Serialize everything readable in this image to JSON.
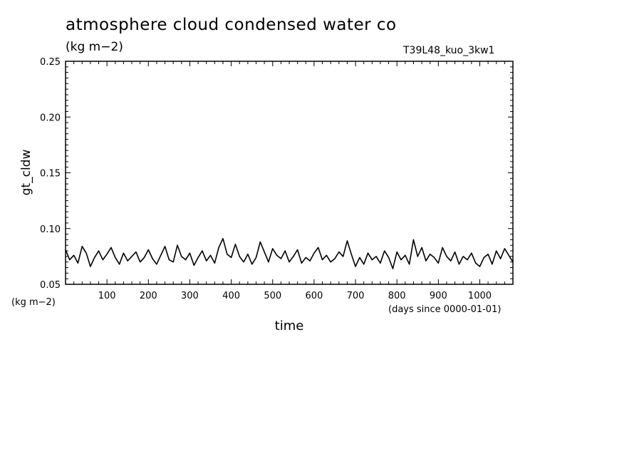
{
  "chart_data": {
    "type": "line",
    "title": "atmosphere cloud condensed water co",
    "units": "(kg m−2)",
    "run_label": "T39L48_kuo_3kw1",
    "xlabel": "time",
    "xunits": "(days since 0000-01-01)",
    "ylabel": "gt_cldw",
    "yunits": "(kg m−2)",
    "xlim": [
      0,
      1080
    ],
    "ylim": [
      0.05,
      0.25
    ],
    "xticks": [
      100,
      200,
      300,
      400,
      500,
      600,
      700,
      800,
      900,
      1000
    ],
    "xtick_labels": [
      "100",
      "200",
      "300",
      "400",
      "500",
      "600",
      "700",
      "800",
      "900",
      "1000"
    ],
    "yticks": [
      0.05,
      0.1,
      0.15,
      0.2,
      0.25
    ],
    "ytick_labels": [
      "0.05",
      "0.10",
      "0.15",
      "0.20",
      "0.25"
    ],
    "grid": false,
    "series": [
      {
        "x": [
          0,
          10,
          20,
          30,
          40,
          50,
          60,
          70,
          80,
          90,
          100,
          110,
          120,
          130,
          140,
          150,
          160,
          170,
          180,
          190,
          200,
          210,
          220,
          230,
          240,
          250,
          260,
          270,
          280,
          290,
          300,
          310,
          320,
          330,
          340,
          350,
          360,
          370,
          380,
          390,
          400,
          410,
          420,
          430,
          440,
          450,
          460,
          470,
          480,
          490,
          500,
          510,
          520,
          530,
          540,
          550,
          560,
          570,
          580,
          590,
          600,
          610,
          620,
          630,
          640,
          650,
          660,
          670,
          680,
          690,
          700,
          710,
          720,
          730,
          740,
          750,
          760,
          770,
          780,
          790,
          800,
          810,
          820,
          830,
          840,
          850,
          860,
          870,
          880,
          890,
          900,
          910,
          920,
          930,
          940,
          950,
          960,
          970,
          980,
          990,
          1000,
          1010,
          1020,
          1030,
          1040,
          1050,
          1060,
          1070,
          1080
        ],
        "y": [
          0.081,
          0.072,
          0.076,
          0.069,
          0.084,
          0.078,
          0.066,
          0.074,
          0.08,
          0.072,
          0.077,
          0.083,
          0.074,
          0.068,
          0.078,
          0.071,
          0.075,
          0.079,
          0.07,
          0.074,
          0.081,
          0.073,
          0.068,
          0.076,
          0.084,
          0.072,
          0.07,
          0.085,
          0.075,
          0.072,
          0.078,
          0.067,
          0.074,
          0.08,
          0.071,
          0.076,
          0.069,
          0.083,
          0.091,
          0.077,
          0.074,
          0.086,
          0.075,
          0.07,
          0.077,
          0.068,
          0.074,
          0.088,
          0.079,
          0.07,
          0.082,
          0.076,
          0.073,
          0.08,
          0.07,
          0.075,
          0.081,
          0.069,
          0.074,
          0.071,
          0.078,
          0.083,
          0.072,
          0.076,
          0.07,
          0.073,
          0.079,
          0.075,
          0.089,
          0.077,
          0.066,
          0.074,
          0.068,
          0.078,
          0.072,
          0.075,
          0.069,
          0.08,
          0.074,
          0.064,
          0.079,
          0.072,
          0.076,
          0.068,
          0.09,
          0.075,
          0.083,
          0.071,
          0.077,
          0.074,
          0.069,
          0.083,
          0.075,
          0.071,
          0.079,
          0.068,
          0.075,
          0.072,
          0.078,
          0.069,
          0.066,
          0.074,
          0.077,
          0.068,
          0.08,
          0.073,
          0.082,
          0.076,
          0.07
        ]
      }
    ]
  }
}
